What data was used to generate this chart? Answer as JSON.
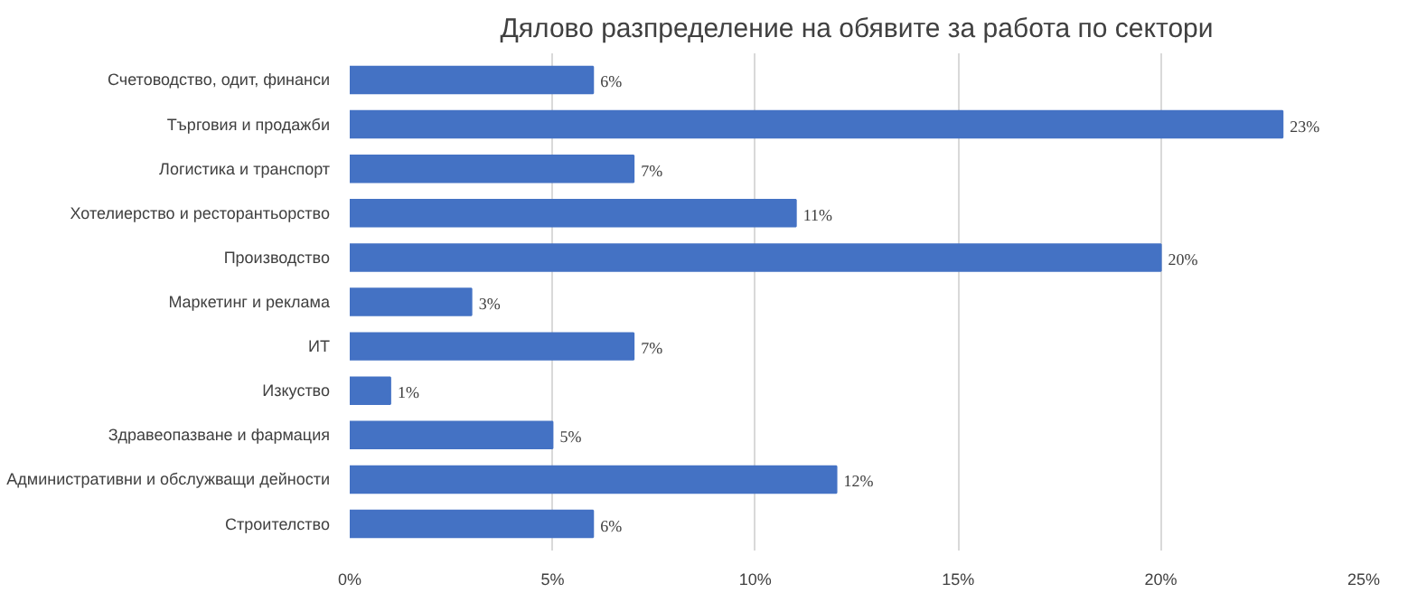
{
  "chart_data": {
    "type": "bar",
    "orientation": "horizontal",
    "title": "Дялово разпределение на обявите за работа по сектори",
    "categories": [
      "Счетоводство, одит, финанси",
      "Търговия и продажби",
      "Логистика и транспорт",
      "Хотелиерство и ресторантьорство",
      "Производство",
      "Маркетинг и реклама",
      "ИТ",
      "Изкуство",
      "Здравеопазване и фармация",
      "Административни и обслужващи дейности",
      "Строителство"
    ],
    "values": [
      6,
      23,
      7,
      11,
      20,
      3,
      7,
      1,
      5,
      12,
      6
    ],
    "value_labels": [
      "6%",
      "23%",
      "7%",
      "11%",
      "20%",
      "3%",
      "7%",
      "1%",
      "5%",
      "12%",
      "6%"
    ],
    "color": "#4472c4",
    "xlim": [
      0,
      25
    ],
    "xticks": [
      {
        "value": 0,
        "label": "0%"
      },
      {
        "value": 5,
        "label": "5%"
      },
      {
        "value": 10,
        "label": "10%"
      },
      {
        "value": 15,
        "label": "15%"
      },
      {
        "value": 20,
        "label": "20%"
      },
      {
        "value": 25,
        "label": "25%"
      }
    ],
    "grid": "x"
  }
}
